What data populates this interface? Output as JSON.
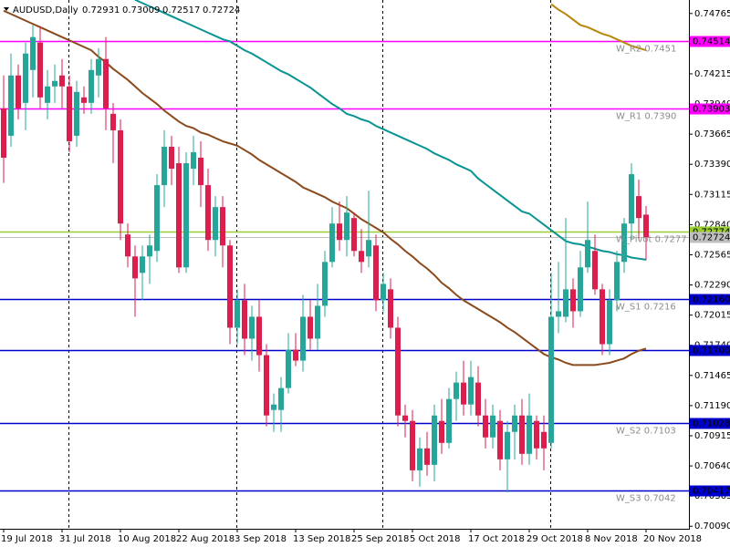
{
  "chart_data": {
    "type": "candlestick",
    "title": "AUDUSD,Daily",
    "categories": [
      "19 Jul 2018",
      null,
      null,
      null,
      null,
      null,
      null,
      null,
      "31 Jul 2018",
      null,
      null,
      null,
      null,
      null,
      null,
      null,
      "10 Aug 2018",
      null,
      null,
      null,
      null,
      null,
      null,
      null,
      "22 Aug 2018",
      null,
      null,
      null,
      null,
      null,
      null,
      null,
      "3 Sep 2018",
      null,
      null,
      null,
      null,
      null,
      null,
      null,
      "13 Sep 2018",
      null,
      null,
      null,
      null,
      null,
      null,
      null,
      "25 Sep 2018",
      null,
      null,
      null,
      null,
      null,
      null,
      null,
      "5 Oct 2018",
      null,
      null,
      null,
      null,
      null,
      null,
      null,
      "17 Oct 2018",
      null,
      null,
      null,
      null,
      null,
      null,
      null,
      "29 Oct 2018",
      null,
      null,
      null,
      null,
      null,
      null,
      null,
      "8 Nov 2018",
      null,
      null,
      null,
      null,
      null,
      null,
      null,
      "20 Nov 2018"
    ],
    "open": [
      0.739,
      0.7365,
      0.742,
      0.7395,
      0.7425,
      0.745,
      0.7395,
      0.741,
      0.742,
      0.741,
      0.7365,
      0.74,
      0.7395,
      0.742,
      0.7435,
      0.7385,
      0.737,
      0.7275,
      0.7255,
      0.724,
      0.7255,
      0.726,
      0.732,
      0.7355,
      0.734,
      0.7245,
      0.7335,
      0.7345,
      0.732,
      0.727,
      0.73,
      0.7265,
      0.719,
      0.7215,
      0.718,
      0.72,
      0.7165,
      0.7115,
      0.7115,
      0.7135,
      0.717,
      0.716,
      0.72,
      0.718,
      0.721,
      0.725,
      0.7285,
      0.727,
      0.729,
      0.726,
      0.7255,
      0.7265,
      0.7215,
      0.7225,
      0.719,
      0.711,
      0.7105,
      0.706,
      0.708,
      0.7065,
      0.7105,
      0.7085,
      0.7125,
      0.714,
      0.712,
      0.714,
      0.711,
      0.709,
      0.7105,
      0.707,
      0.7095,
      0.711,
      0.7075,
      0.7105,
      0.7095,
      0.7085,
      0.72,
      0.72,
      0.7225,
      0.7205,
      0.7245,
      0.726,
      0.7225,
      0.7175,
      0.7215,
      0.725,
      0.7285,
      0.731,
      0.72931
    ],
    "high": [
      0.742,
      0.744,
      0.743,
      0.745,
      0.7466,
      0.7465,
      0.7425,
      0.743,
      0.7435,
      0.742,
      0.7415,
      0.741,
      0.7435,
      0.7445,
      0.7455,
      0.7395,
      0.738,
      0.7285,
      0.7265,
      0.7265,
      0.7275,
      0.733,
      0.737,
      0.7365,
      0.7355,
      0.735,
      0.7365,
      0.736,
      0.7335,
      0.731,
      0.731,
      0.727,
      0.7225,
      0.723,
      0.721,
      0.7215,
      0.7175,
      0.713,
      0.7145,
      0.7185,
      0.7185,
      0.722,
      0.7215,
      0.723,
      0.726,
      0.73,
      0.7305,
      0.731,
      0.7295,
      0.728,
      0.7315,
      0.7275,
      0.724,
      0.7235,
      0.72,
      0.712,
      0.7115,
      0.709,
      0.7095,
      0.712,
      0.7125,
      0.7135,
      0.715,
      0.716,
      0.716,
      0.7155,
      0.7125,
      0.712,
      0.7115,
      0.7105,
      0.712,
      0.7125,
      0.713,
      0.711,
      0.711,
      0.724,
      0.725,
      0.729,
      0.7235,
      0.726,
      0.7305,
      0.7275,
      0.723,
      0.7225,
      0.726,
      0.729,
      0.734,
      0.7325,
      0.73009
    ],
    "low": [
      0.7322,
      0.7355,
      0.738,
      0.737,
      0.74,
      0.739,
      0.738,
      0.7395,
      0.739,
      0.735,
      0.7355,
      0.7385,
      0.7385,
      0.74,
      0.737,
      0.734,
      0.727,
      0.7245,
      0.72,
      0.7215,
      0.723,
      0.725,
      0.73,
      0.732,
      0.724,
      0.724,
      0.732,
      0.73,
      0.726,
      0.7255,
      0.7245,
      0.7175,
      0.7175,
      0.7165,
      0.716,
      0.715,
      0.71,
      0.7095,
      0.7095,
      0.713,
      0.7155,
      0.715,
      0.717,
      0.717,
      0.72,
      0.7245,
      0.726,
      0.7255,
      0.7255,
      0.724,
      0.7245,
      0.7205,
      0.7205,
      0.718,
      0.71,
      0.709,
      0.705,
      0.7045,
      0.7055,
      0.705,
      0.7075,
      0.708,
      0.7105,
      0.711,
      0.711,
      0.71,
      0.708,
      0.708,
      0.706,
      0.704,
      0.707,
      0.7065,
      0.7065,
      0.707,
      0.706,
      0.708,
      0.7185,
      0.7195,
      0.719,
      0.72,
      0.724,
      0.722,
      0.7165,
      0.7165,
      0.7205,
      0.724,
      0.727,
      0.727,
      0.72517
    ],
    "close": [
      0.7345,
      0.742,
      0.739,
      0.744,
      0.7455,
      0.74,
      0.741,
      0.7415,
      0.741,
      0.736,
      0.7405,
      0.7395,
      0.7425,
      0.7435,
      0.739,
      0.737,
      0.7285,
      0.7255,
      0.7235,
      0.7255,
      0.7265,
      0.732,
      0.7355,
      0.7335,
      0.7245,
      0.734,
      0.735,
      0.732,
      0.727,
      0.73,
      0.7265,
      0.719,
      0.7215,
      0.718,
      0.72,
      0.7165,
      0.711,
      0.712,
      0.7135,
      0.717,
      0.716,
      0.72,
      0.718,
      0.721,
      0.725,
      0.7285,
      0.727,
      0.7295,
      0.726,
      0.725,
      0.727,
      0.7215,
      0.723,
      0.719,
      0.711,
      0.7105,
      0.706,
      0.708,
      0.7065,
      0.711,
      0.7085,
      0.7125,
      0.714,
      0.712,
      0.7145,
      0.711,
      0.709,
      0.711,
      0.707,
      0.7095,
      0.711,
      0.7075,
      0.711,
      0.708,
      0.708,
      0.72,
      0.7205,
      0.7225,
      0.7205,
      0.7245,
      0.727,
      0.7225,
      0.7175,
      0.7215,
      0.725,
      0.7285,
      0.733,
      0.729,
      0.72724
    ],
    "up_color": "#26a69a",
    "down_color": "#dc1e4e",
    "moving_averages": [
      {
        "color": "#0a9393",
        "values": [
          null,
          null,
          null,
          null,
          null,
          null,
          null,
          null,
          null,
          null,
          null,
          null,
          null,
          null,
          null,
          null,
          null,
          null,
          0.7489,
          0.7486,
          0.7483,
          0.748,
          0.7477,
          0.7474,
          0.7471,
          0.7468,
          0.7465,
          0.7462,
          0.7459,
          0.7456,
          0.7453,
          0.7451,
          0.7447,
          0.7443,
          0.744,
          0.7436,
          0.7432,
          0.7428,
          0.7424,
          0.7421,
          0.7417,
          0.7413,
          0.7409,
          0.7404,
          0.7399,
          0.7394,
          0.739,
          0.7385,
          0.7383,
          0.738,
          0.7378,
          0.7374,
          0.7371,
          0.7368,
          0.7365,
          0.7362,
          0.7359,
          0.7356,
          0.7353,
          0.7349,
          0.7346,
          0.7343,
          0.7339,
          0.7336,
          0.7333,
          0.7326,
          0.7321,
          0.7316,
          0.7311,
          0.7306,
          0.7301,
          0.7296,
          0.7294,
          0.7289,
          0.7284,
          0.7279,
          0.7274,
          0.7269,
          0.7267,
          0.7266,
          0.7264,
          0.7262,
          0.726,
          0.7259,
          0.7257,
          0.7256,
          0.7254,
          0.7253,
          0.7252
        ]
      },
      {
        "color": "#8b4a1c",
        "values": [
          0.7479,
          0.7476,
          0.7473,
          0.747,
          0.7467,
          0.7464,
          0.7461,
          0.7458,
          0.7455,
          0.7452,
          0.7449,
          0.7446,
          0.7443,
          0.7437,
          0.7432,
          0.7426,
          0.7421,
          0.7416,
          0.741,
          0.7404,
          0.7399,
          0.7394,
          0.7388,
          0.7383,
          0.7378,
          0.7374,
          0.7372,
          0.7368,
          0.7366,
          0.7363,
          0.736,
          0.7358,
          0.7356,
          0.7352,
          0.7348,
          0.7343,
          0.7339,
          0.7335,
          0.7331,
          0.7327,
          0.7323,
          0.7318,
          0.7315,
          0.7312,
          0.7309,
          0.7305,
          0.7302,
          0.7299,
          0.7294,
          0.7289,
          0.7285,
          0.7281,
          0.7277,
          0.7271,
          0.7266,
          0.726,
          0.7255,
          0.7249,
          0.7244,
          0.7238,
          0.7231,
          0.7226,
          0.722,
          0.7215,
          0.7211,
          0.7207,
          0.7203,
          0.7199,
          0.7195,
          0.719,
          0.7186,
          0.7181,
          0.7176,
          0.7171,
          0.7166,
          0.7163,
          0.7161,
          0.7158,
          0.7156,
          0.7156,
          0.7156,
          0.7156,
          0.7157,
          0.7158,
          0.716,
          0.7162,
          0.7166,
          0.7169,
          0.7171
        ]
      },
      {
        "color": "#b8860b",
        "values": [
          null,
          null,
          null,
          null,
          null,
          null,
          null,
          null,
          null,
          null,
          null,
          null,
          null,
          null,
          null,
          null,
          null,
          null,
          null,
          null,
          null,
          null,
          null,
          null,
          null,
          null,
          null,
          null,
          null,
          null,
          null,
          null,
          null,
          null,
          null,
          null,
          null,
          null,
          null,
          null,
          null,
          null,
          null,
          null,
          null,
          null,
          null,
          null,
          null,
          null,
          null,
          null,
          null,
          null,
          null,
          null,
          null,
          null,
          null,
          null,
          null,
          null,
          null,
          null,
          null,
          null,
          null,
          null,
          null,
          null,
          null,
          null,
          null,
          null,
          null,
          0.7485,
          0.748,
          0.7476,
          0.7471,
          0.7466,
          0.7464,
          0.7461,
          0.7458,
          0.7456,
          0.7453,
          0.745,
          0.7447,
          0.7445,
          0.7443
        ]
      }
    ],
    "levels": [
      {
        "value": 0.74514,
        "value_label": "0.74514",
        "label": "W_R2 0.7451",
        "color": "#ff00ff"
      },
      {
        "value": 0.73903,
        "value_label": "0.73903",
        "label": "W_R1 0.7390",
        "color": "#ff00ff"
      },
      {
        "value": 0.72774,
        "value_label": "0.72774",
        "label": "W_Pivot 0.7277",
        "color": "#9acd32"
      },
      {
        "value": 0.7216,
        "value_label": "0.72160",
        "label": "W_S1 0.7216",
        "color": "#0000cd"
      },
      {
        "value": 0.717,
        "value_label": "0.71700",
        "color": "#0000cd"
      },
      {
        "value": 0.71028,
        "value_label": "0.71028",
        "label": "W_S2 0.7103",
        "color": "#0000cd"
      },
      {
        "value": 0.70417,
        "value_label": "0.70417",
        "label": "W_S3 0.7042",
        "color": "#0000cd"
      }
    ],
    "bid_color": "#c0c0c0",
    "ylim": [
      0.70067,
      0.74888
    ],
    "yticks": [
      0.74765,
      {
        "value": 0.7449,
        "label": "0.74490"
      },
      0.74215,
      {
        "value": 0.7394,
        "label": "0.73940"
      },
      0.73665,
      {
        "value": 0.7339,
        "label": "0.73390"
      },
      0.73115,
      {
        "value": 0.7284,
        "label": "0.72840"
      },
      0.72565,
      {
        "value": 0.7229,
        "label": "0.72290"
      },
      0.72015,
      {
        "value": 0.7174,
        "label": "0.71740"
      },
      0.71465,
      {
        "value": 0.7119,
        "label": "0.71190"
      },
      0.70915,
      {
        "value": 0.7064,
        "label": "0.70640"
      },
      0.70365,
      {
        "value": 0.7009,
        "label": "0.70090"
      }
    ]
  }
}
